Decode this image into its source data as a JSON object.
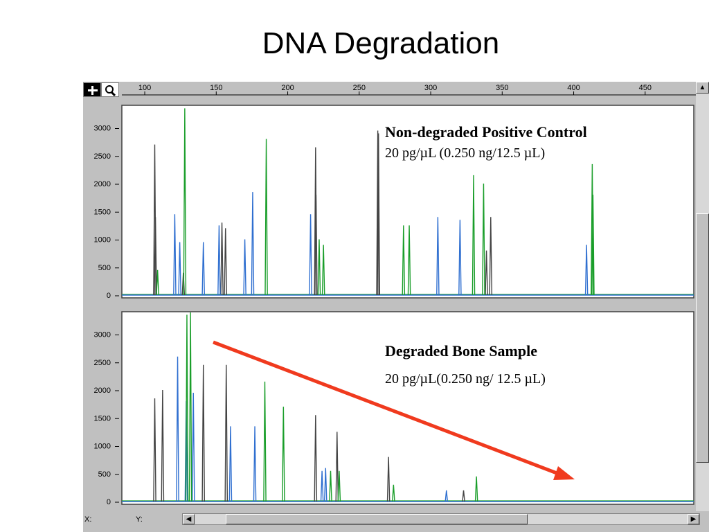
{
  "slide": {
    "title": "DNA Degradation"
  },
  "toolbar": {
    "zoom_icon": "zoom-in-icon",
    "magnifier_icon": "magnifier-icon"
  },
  "status": {
    "x_label": "X:",
    "y_label": "Y:"
  },
  "scroll": {
    "left_glyph": "◀",
    "right_glyph": "▶",
    "up_glyph": "▲"
  },
  "colors": {
    "black": "#444444",
    "blue": "#2f6fd0",
    "green": "#1a9e2a",
    "arrow": "#f03a1e"
  },
  "chart_data": [
    {
      "type": "line",
      "name": "top-panel",
      "title": "Non-degraded Positive Control",
      "subtitle": "20 pg/µL (0.250 ng/12.5 µL)",
      "xticks": [
        100,
        150,
        200,
        250,
        300,
        350,
        400,
        450
      ],
      "yticks": [
        0,
        500,
        1000,
        1500,
        2000,
        2500,
        3000
      ],
      "xlim": [
        84,
        484
      ],
      "ylim": [
        0,
        3350
      ],
      "series": [
        {
          "color": "black",
          "peaks": [
            [
              107,
              2700
            ],
            [
              107.5,
              1400
            ],
            [
              127,
              400
            ],
            [
              154,
              1300
            ],
            [
              156.5,
              1200
            ],
            [
              219.5,
              2650
            ],
            [
              219.8,
              1800
            ],
            [
              263,
              2950
            ],
            [
              263.5,
              2900
            ],
            [
              339,
              800
            ],
            [
              342,
              1400
            ]
          ]
        },
        {
          "color": "blue",
          "peaks": [
            [
              121,
              1450
            ],
            [
              124.5,
              950
            ],
            [
              141,
              950
            ],
            [
              152,
              1250
            ],
            [
              170,
              1000
            ],
            [
              175.5,
              1850
            ],
            [
              216,
              1450
            ],
            [
              305,
              1400
            ],
            [
              320.5,
              1350
            ],
            [
              409,
              900
            ]
          ]
        },
        {
          "color": "green",
          "peaks": [
            [
              109,
              450
            ],
            [
              128,
              3350
            ],
            [
              185,
              2800
            ],
            [
              222,
              1000
            ],
            [
              225,
              900
            ],
            [
              281,
              1250
            ],
            [
              285,
              1250
            ],
            [
              330,
              2150
            ],
            [
              337,
              2000
            ],
            [
              413,
              2350
            ],
            [
              413.5,
              1800
            ]
          ]
        }
      ]
    },
    {
      "type": "line",
      "name": "bottom-panel",
      "title": "Degraded Bone Sample",
      "subtitle": "20 pg/µL(0.250 ng/ 12.5 µL)",
      "xticks": [
        100,
        150,
        200,
        250,
        300,
        350,
        400,
        450
      ],
      "yticks": [
        0,
        500,
        1000,
        1500,
        2000,
        2500,
        3000
      ],
      "xlim": [
        84,
        484
      ],
      "ylim": [
        0,
        3350
      ],
      "series": [
        {
          "color": "black",
          "peaks": [
            [
              107,
              1850
            ],
            [
              112.5,
              2000
            ],
            [
              141,
              2450
            ],
            [
              157,
              2450
            ],
            [
              219.5,
              1550
            ],
            [
              234.5,
              1250
            ],
            [
              270.5,
              800
            ],
            [
              323,
              200
            ]
          ]
        },
        {
          "color": "blue",
          "peaks": [
            [
              123,
              2600
            ],
            [
              129,
              1800
            ],
            [
              134,
              1950
            ],
            [
              160,
              1350
            ],
            [
              177,
              1350
            ],
            [
              224,
              550
            ],
            [
              226.5,
              600
            ],
            [
              311,
              200
            ]
          ]
        },
        {
          "color": "green",
          "peaks": [
            [
              129.5,
              3350
            ],
            [
              132,
              3500
            ],
            [
              184,
              2150
            ],
            [
              197,
              1700
            ],
            [
              230,
              550
            ],
            [
              236,
              550
            ],
            [
              274,
              300
            ],
            [
              332,
              450
            ]
          ]
        }
      ]
    }
  ]
}
